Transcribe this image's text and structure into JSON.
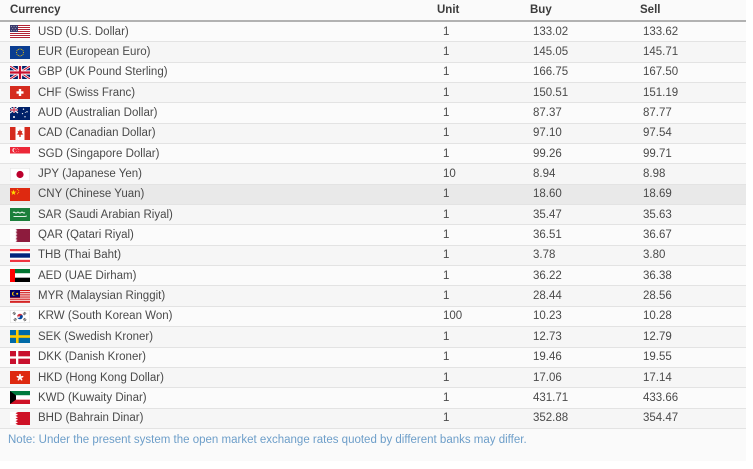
{
  "table": {
    "columns": [
      "Currency",
      "Unit",
      "Buy",
      "Sell"
    ]
  },
  "rows": [
    {
      "flag": "us",
      "label": "USD (U.S. Dollar)",
      "unit": "1",
      "buy": "133.02",
      "sell": "133.62",
      "highlighted": false
    },
    {
      "flag": "eu",
      "label": "EUR (European Euro)",
      "unit": "1",
      "buy": "145.05",
      "sell": "145.71",
      "highlighted": false
    },
    {
      "flag": "gb",
      "label": "GBP (UK Pound Sterling)",
      "unit": "1",
      "buy": "166.75",
      "sell": "167.50",
      "highlighted": false
    },
    {
      "flag": "ch",
      "label": "CHF (Swiss Franc)",
      "unit": "1",
      "buy": "150.51",
      "sell": "151.19",
      "highlighted": false
    },
    {
      "flag": "au",
      "label": "AUD (Australian Dollar)",
      "unit": "1",
      "buy": "87.37",
      "sell": "87.77",
      "highlighted": false
    },
    {
      "flag": "ca",
      "label": "CAD (Canadian Dollar)",
      "unit": "1",
      "buy": "97.10",
      "sell": "97.54",
      "highlighted": false
    },
    {
      "flag": "sg",
      "label": "SGD (Singapore Dollar)",
      "unit": "1",
      "buy": "99.26",
      "sell": "99.71",
      "highlighted": false
    },
    {
      "flag": "jp",
      "label": "JPY (Japanese Yen)",
      "unit": "10",
      "buy": "8.94",
      "sell": "8.98",
      "highlighted": false
    },
    {
      "flag": "cn",
      "label": "CNY (Chinese Yuan)",
      "unit": "1",
      "buy": "18.60",
      "sell": "18.69",
      "highlighted": true
    },
    {
      "flag": "sa",
      "label": "SAR (Saudi Arabian Riyal)",
      "unit": "1",
      "buy": "35.47",
      "sell": "35.63",
      "highlighted": false
    },
    {
      "flag": "qa",
      "label": "QAR (Qatari Riyal)",
      "unit": "1",
      "buy": "36.51",
      "sell": "36.67",
      "highlighted": false
    },
    {
      "flag": "th",
      "label": "THB (Thai Baht)",
      "unit": "1",
      "buy": "3.78",
      "sell": "3.80",
      "highlighted": false
    },
    {
      "flag": "ae",
      "label": "AED (UAE Dirham)",
      "unit": "1",
      "buy": "36.22",
      "sell": "36.38",
      "highlighted": false
    },
    {
      "flag": "my",
      "label": "MYR (Malaysian Ringgit)",
      "unit": "1",
      "buy": "28.44",
      "sell": "28.56",
      "highlighted": false
    },
    {
      "flag": "kr",
      "label": "KRW (South Korean Won)",
      "unit": "100",
      "buy": "10.23",
      "sell": "10.28",
      "highlighted": false
    },
    {
      "flag": "se",
      "label": "SEK (Swedish Kroner)",
      "unit": "1",
      "buy": "12.73",
      "sell": "12.79",
      "highlighted": false
    },
    {
      "flag": "dk",
      "label": "DKK (Danish Kroner)",
      "unit": "1",
      "buy": "19.46",
      "sell": "19.55",
      "highlighted": false
    },
    {
      "flag": "hk",
      "label": "HKD (Hong Kong Dollar)",
      "unit": "1",
      "buy": "17.06",
      "sell": "17.14",
      "highlighted": false
    },
    {
      "flag": "kw",
      "label": "KWD (Kuwaity Dinar)",
      "unit": "1",
      "buy": "431.71",
      "sell": "433.66",
      "highlighted": false
    },
    {
      "flag": "bh",
      "label": "BHD (Bahrain Dinar)",
      "unit": "1",
      "buy": "352.88",
      "sell": "354.47",
      "highlighted": false
    }
  ],
  "note": "Note: Under the present system the open market exchange rates quoted by different banks may differ.",
  "colors": {
    "note_text": "#6d9ec9",
    "row_highlight": "#e9e9e9",
    "header_text": "#3c3c3c",
    "row_text": "#4a4a4a"
  }
}
